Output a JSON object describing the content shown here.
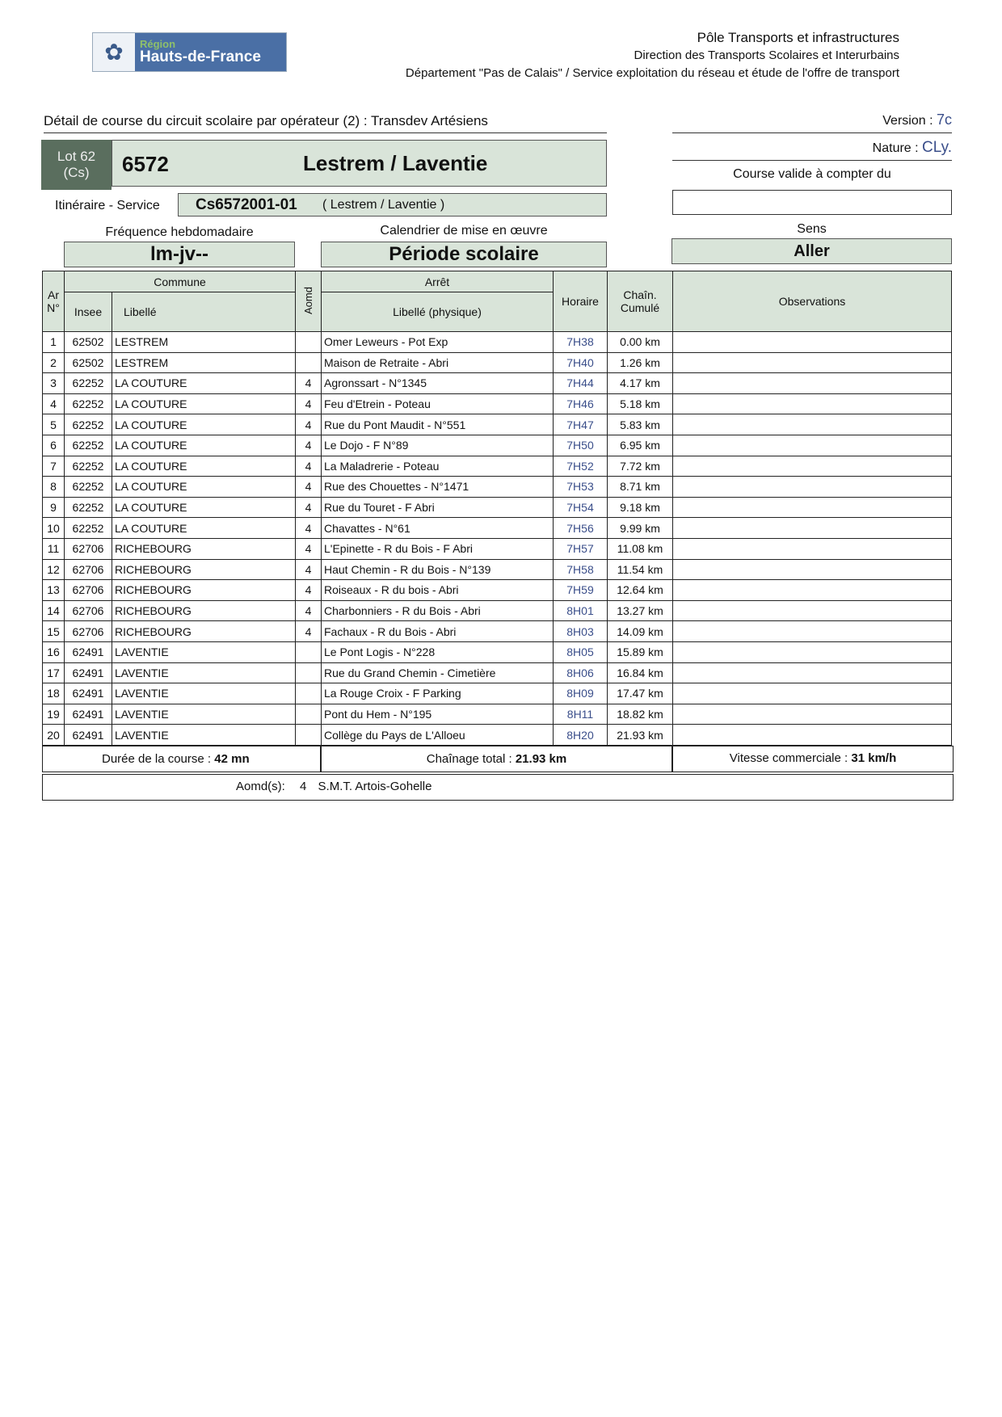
{
  "logo": {
    "region": "Région",
    "name": "Hauts-de-France"
  },
  "header": {
    "line1": "Pôle Transports et infrastructures",
    "line2": "Direction des Transports Scolaires et Interurbains",
    "line3": "Département \"Pas de Calais\" / Service exploitation du réseau et étude de l'offre de transport"
  },
  "title": "Détail de course du circuit scolaire par opérateur (2) : Transdev Artésiens",
  "version_label": "Version :",
  "version": "7c",
  "lot": {
    "label": "Lot 62",
    "type": "(Cs)"
  },
  "course_number": "6572",
  "course_name": "Lestrem / Laventie",
  "nature_label": "Nature :",
  "nature": "CLy.",
  "valid_label": "Course valide à compter du",
  "valid_date": "",
  "itineraire": {
    "label": "Itinéraire - Service",
    "code": "Cs6572001-01",
    "name": "( Lestrem / Laventie )"
  },
  "frequence": {
    "label": "Fréquence hebdomadaire",
    "value": "lm-jv--"
  },
  "calendrier": {
    "label": "Calendrier de mise en œuvre",
    "value": "Période scolaire"
  },
  "sens": {
    "label": "Sens",
    "value": "Aller"
  },
  "table": {
    "headers": {
      "ar": "Ar",
      "no": "N°",
      "commune": "Commune",
      "insee": "Insee",
      "libelle": "Libellé",
      "aomd": "Aomd",
      "arret": "Arrêt",
      "libelle_physique": "Libellé (physique)",
      "horaire": "Horaire",
      "chain1": "Chaîn.",
      "chain2": "Cumulé",
      "observations": "Observations"
    },
    "rows": [
      {
        "n": "1",
        "insee": "62502",
        "commune": "LESTREM",
        "aomd": "",
        "arret": "Omer Leweurs - Pot Exp",
        "horaire": "7H38",
        "km": "0.00 km"
      },
      {
        "n": "2",
        "insee": "62502",
        "commune": "LESTREM",
        "aomd": "",
        "arret": "Maison de Retraite - Abri",
        "horaire": "7H40",
        "km": "1.26 km"
      },
      {
        "n": "3",
        "insee": "62252",
        "commune": "LA COUTURE",
        "aomd": "4",
        "arret": "Agronssart - N°1345",
        "horaire": "7H44",
        "km": "4.17 km"
      },
      {
        "n": "4",
        "insee": "62252",
        "commune": "LA COUTURE",
        "aomd": "4",
        "arret": "Feu d'Etrein - Poteau",
        "horaire": "7H46",
        "km": "5.18 km"
      },
      {
        "n": "5",
        "insee": "62252",
        "commune": "LA COUTURE",
        "aomd": "4",
        "arret": "Rue du Pont Maudit - N°551",
        "horaire": "7H47",
        "km": "5.83 km"
      },
      {
        "n": "6",
        "insee": "62252",
        "commune": "LA COUTURE",
        "aomd": "4",
        "arret": "Le Dojo - F N°89",
        "horaire": "7H50",
        "km": "6.95 km"
      },
      {
        "n": "7",
        "insee": "62252",
        "commune": "LA COUTURE",
        "aomd": "4",
        "arret": "La Maladrerie - Poteau",
        "horaire": "7H52",
        "km": "7.72 km"
      },
      {
        "n": "8",
        "insee": "62252",
        "commune": "LA COUTURE",
        "aomd": "4",
        "arret": "Rue des Chouettes - N°1471",
        "horaire": "7H53",
        "km": "8.71 km"
      },
      {
        "n": "9",
        "insee": "62252",
        "commune": "LA COUTURE",
        "aomd": "4",
        "arret": "Rue du Touret - F Abri",
        "horaire": "7H54",
        "km": "9.18 km"
      },
      {
        "n": "10",
        "insee": "62252",
        "commune": "LA COUTURE",
        "aomd": "4",
        "arret": "Chavattes - N°61",
        "horaire": "7H56",
        "km": "9.99 km"
      },
      {
        "n": "11",
        "insee": "62706",
        "commune": "RICHEBOURG",
        "aomd": "4",
        "arret": "L'Epinette - R du Bois - F Abri",
        "horaire": "7H57",
        "km": "11.08 km"
      },
      {
        "n": "12",
        "insee": "62706",
        "commune": "RICHEBOURG",
        "aomd": "4",
        "arret": "Haut Chemin - R du Bois - N°139",
        "horaire": "7H58",
        "km": "11.54 km"
      },
      {
        "n": "13",
        "insee": "62706",
        "commune": "RICHEBOURG",
        "aomd": "4",
        "arret": "Roiseaux - R du bois - Abri",
        "horaire": "7H59",
        "km": "12.64 km"
      },
      {
        "n": "14",
        "insee": "62706",
        "commune": "RICHEBOURG",
        "aomd": "4",
        "arret": "Charbonniers - R du Bois - Abri",
        "horaire": "8H01",
        "km": "13.27 km"
      },
      {
        "n": "15",
        "insee": "62706",
        "commune": "RICHEBOURG",
        "aomd": "4",
        "arret": "Fachaux - R du Bois - Abri",
        "horaire": "8H03",
        "km": "14.09 km"
      },
      {
        "n": "16",
        "insee": "62491",
        "commune": "LAVENTIE",
        "aomd": "",
        "arret": "Le Pont Logis - N°228",
        "horaire": "8H05",
        "km": "15.89 km"
      },
      {
        "n": "17",
        "insee": "62491",
        "commune": "LAVENTIE",
        "aomd": "",
        "arret": "Rue du Grand Chemin - Cimetière",
        "horaire": "8H06",
        "km": "16.84 km"
      },
      {
        "n": "18",
        "insee": "62491",
        "commune": "LAVENTIE",
        "aomd": "",
        "arret": "La Rouge Croix - F Parking",
        "horaire": "8H09",
        "km": "17.47 km"
      },
      {
        "n": "19",
        "insee": "62491",
        "commune": "LAVENTIE",
        "aomd": "",
        "arret": "Pont du Hem - N°195",
        "horaire": "8H11",
        "km": "18.82 km"
      },
      {
        "n": "20",
        "insee": "62491",
        "commune": "LAVENTIE",
        "aomd": "",
        "arret": "Collège du Pays de L'Alloeu",
        "horaire": "8H20",
        "km": "21.93 km"
      }
    ]
  },
  "footer": {
    "duree_label": "Durée de la course :",
    "duree": "42 mn",
    "chainage_label": "Chaînage total :",
    "chainage": "21.93 km",
    "vitesse_label": "Vitesse commerciale :",
    "vitesse": "31 km/h",
    "aomd_label": "Aomd(s):",
    "aomd_num": "4",
    "aomd_name": "S.M.T. Artois-Gohelle"
  }
}
